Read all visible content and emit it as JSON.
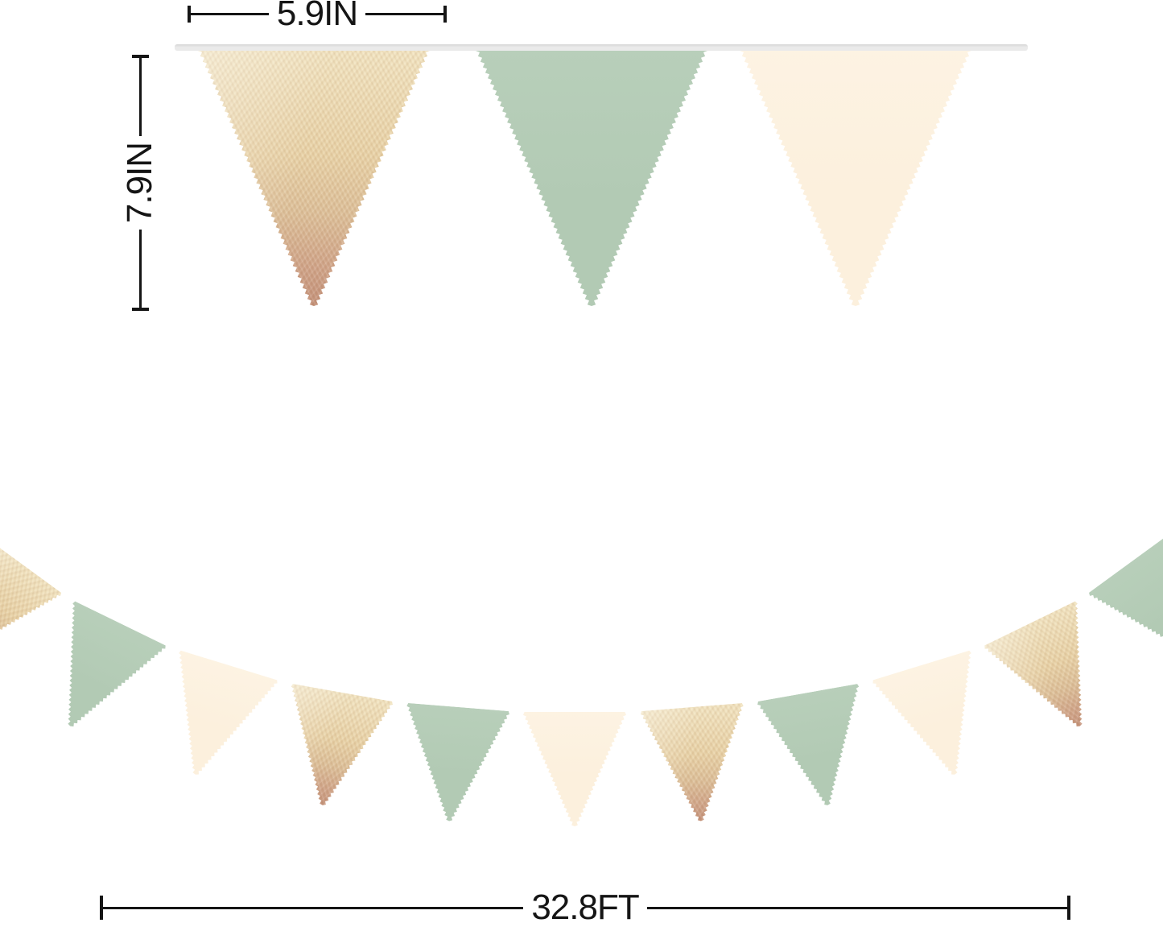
{
  "measurements": {
    "top_width_label": "5.9IN",
    "side_height_label": "7.9IN",
    "total_length_label": "32.8FT",
    "line_color": "#151515"
  },
  "banner": {
    "string_color": "#eaeaea",
    "string_edge_color": "#d6d6d6",
    "palette": {
      "gold_light": "#f3e6c3",
      "gold_base": "#e9d3a7",
      "gold_mid": "#ddc099",
      "gold_rose": "#d0a488",
      "gold_tip": "#c28f77",
      "green": "#b2cab4",
      "green_light": "#b8cfba",
      "cream": "#fcf0dd",
      "cream_light": "#fdf3e3"
    },
    "top_row_colors": [
      "gold",
      "green",
      "cream"
    ],
    "bottom_row_colors": [
      "gold",
      "green",
      "cream",
      "gold",
      "green",
      "cream",
      "gold",
      "green",
      "cream",
      "gold",
      "green"
    ],
    "top_flag_count": "3",
    "bottom_flag_count": "11"
  }
}
